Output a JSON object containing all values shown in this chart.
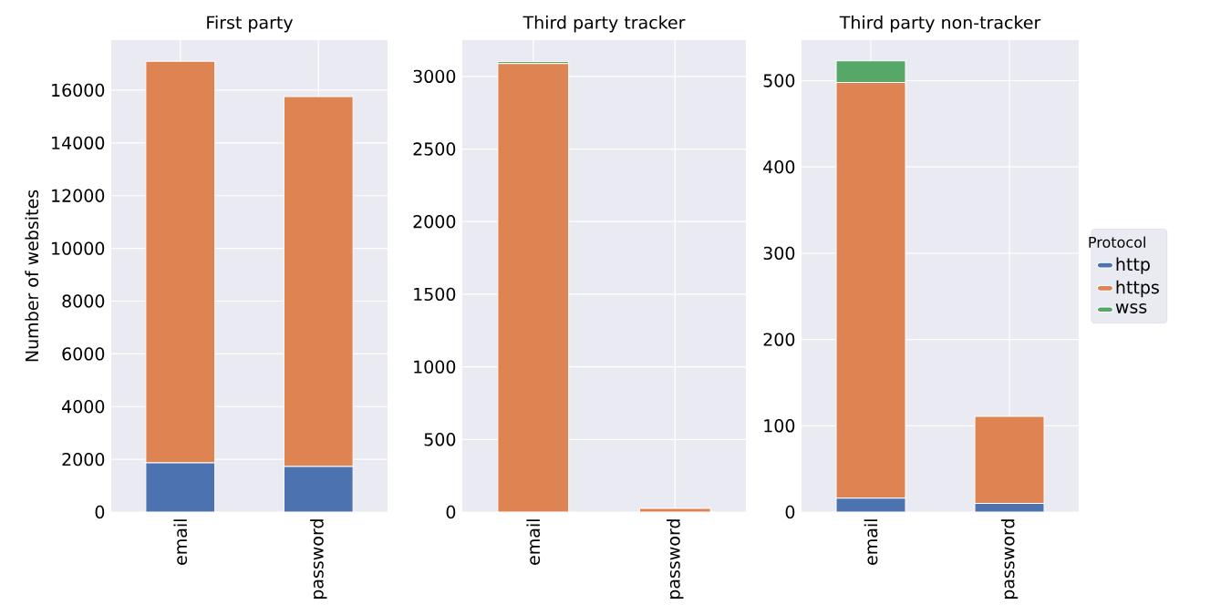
{
  "chart_data": [
    {
      "type": "bar",
      "title": "First party",
      "ylabel": "Number of websites",
      "categories": [
        "email",
        "password"
      ],
      "stacked": true,
      "grid": true,
      "ylim": [
        0,
        17900
      ],
      "yticks": [
        0,
        2000,
        4000,
        6000,
        8000,
        10000,
        12000,
        14000,
        16000
      ],
      "series": [
        {
          "color": "#4c72b0",
          "values": [
            1870,
            1730
          ]
        },
        {
          "color": "#dd8452",
          "values": [
            15230,
            14030
          ]
        },
        {
          "color": "#55a868",
          "values": [
            0,
            0
          ]
        }
      ]
    },
    {
      "type": "bar",
      "title": "Third party tracker",
      "categories": [
        "email",
        "password"
      ],
      "stacked": true,
      "grid": true,
      "ylim": [
        0,
        3250
      ],
      "yticks": [
        0,
        500,
        1000,
        1500,
        2000,
        2500,
        3000
      ],
      "series": [
        {
          "color": "#4c72b0",
          "values": [
            0,
            0
          ]
        },
        {
          "color": "#dd8452",
          "values": [
            3088,
            25
          ]
        },
        {
          "color": "#55a868",
          "values": [
            15,
            0
          ]
        }
      ]
    },
    {
      "type": "bar",
      "title": "Third party non-tracker",
      "categories": [
        "email",
        "password"
      ],
      "stacked": true,
      "grid": true,
      "legend": "right",
      "legend_title": "Protocol",
      "ylim": [
        0,
        547
      ],
      "yticks": [
        0,
        100,
        200,
        300,
        400,
        500
      ],
      "series": [
        {
          "name": "http",
          "color": "#4c72b0",
          "values": [
            16,
            10
          ]
        },
        {
          "name": "https",
          "color": "#dd8452",
          "values": [
            482,
            101
          ]
        },
        {
          "name": "wss",
          "color": "#55a868",
          "values": [
            25,
            0
          ]
        }
      ]
    }
  ]
}
